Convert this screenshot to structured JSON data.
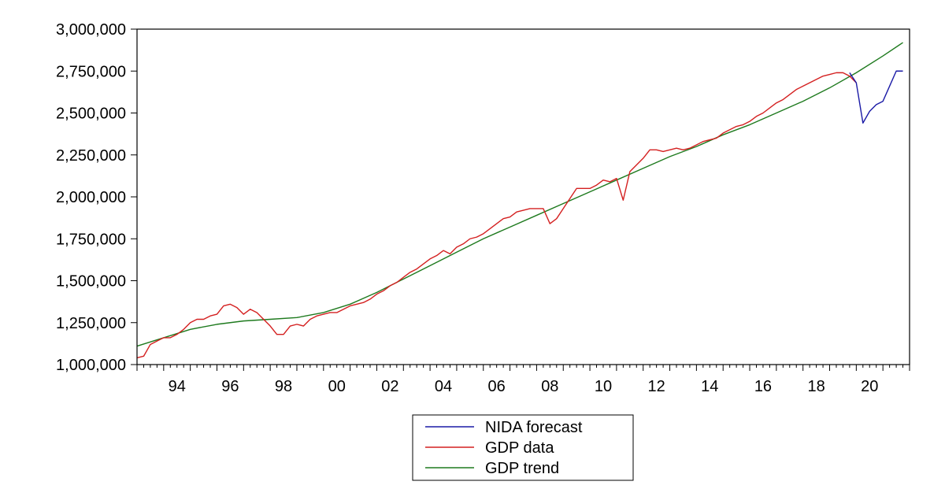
{
  "chart_data": {
    "type": "line",
    "title": "",
    "xlabel": "",
    "ylabel": "",
    "xlim": [
      1993.0,
      2022.0
    ],
    "ylim": [
      1000000,
      3000000
    ],
    "y_ticks": [
      1000000,
      1250000,
      1500000,
      1750000,
      2000000,
      2250000,
      2500000,
      2750000,
      3000000
    ],
    "y_tick_labels": [
      "1,000,000",
      "1,250,000",
      "1,500,000",
      "1,750,000",
      "2,000,000",
      "2,250,000",
      "2,500,000",
      "2,750,000",
      "3,000,000"
    ],
    "x_tick_labels": [
      {
        "x": 1994.5,
        "label": "94"
      },
      {
        "x": 1996.5,
        "label": "96"
      },
      {
        "x": 1998.5,
        "label": "98"
      },
      {
        "x": 2000.5,
        "label": "00"
      },
      {
        "x": 2002.5,
        "label": "02"
      },
      {
        "x": 2004.5,
        "label": "04"
      },
      {
        "x": 2006.5,
        "label": "06"
      },
      {
        "x": 2008.5,
        "label": "08"
      },
      {
        "x": 2010.5,
        "label": "10"
      },
      {
        "x": 2012.5,
        "label": "12"
      },
      {
        "x": 2014.5,
        "label": "14"
      },
      {
        "x": 2016.5,
        "label": "16"
      },
      {
        "x": 2018.5,
        "label": "18"
      },
      {
        "x": 2020.5,
        "label": "20"
      }
    ],
    "grid": false,
    "legend_position": "bottom",
    "series": [
      {
        "name": "NIDA forecast",
        "color": "#1a1aa6",
        "x": [
          2019.75,
          2020.0,
          2020.25,
          2020.5,
          2020.75,
          2021.0,
          2021.25,
          2021.5,
          2021.75
        ],
        "y": [
          2740000,
          2680000,
          2440000,
          2510000,
          2550000,
          2570000,
          2660000,
          2750000,
          2750000
        ]
      },
      {
        "name": "GDP data",
        "color": "#d42020",
        "x": [
          1993.0,
          1993.25,
          1993.5,
          1993.75,
          1994.0,
          1994.25,
          1994.5,
          1994.75,
          1995.0,
          1995.25,
          1995.5,
          1995.75,
          1996.0,
          1996.25,
          1996.5,
          1996.75,
          1997.0,
          1997.25,
          1997.5,
          1997.75,
          1998.0,
          1998.25,
          1998.5,
          1998.75,
          1999.0,
          1999.25,
          1999.5,
          1999.75,
          2000.0,
          2000.25,
          2000.5,
          2000.75,
          2001.0,
          2001.25,
          2001.5,
          2001.75,
          2002.0,
          2002.25,
          2002.5,
          2002.75,
          2003.0,
          2003.25,
          2003.5,
          2003.75,
          2004.0,
          2004.25,
          2004.5,
          2004.75,
          2005.0,
          2005.25,
          2005.5,
          2005.75,
          2006.0,
          2006.25,
          2006.5,
          2006.75,
          2007.0,
          2007.25,
          2007.5,
          2007.75,
          2008.0,
          2008.25,
          2008.5,
          2008.75,
          2009.0,
          2009.25,
          2009.5,
          2009.75,
          2010.0,
          2010.25,
          2010.5,
          2010.75,
          2011.0,
          2011.25,
          2011.5,
          2011.75,
          2012.0,
          2012.25,
          2012.5,
          2012.75,
          2013.0,
          2013.25,
          2013.5,
          2013.75,
          2014.0,
          2014.25,
          2014.5,
          2014.75,
          2015.0,
          2015.25,
          2015.5,
          2015.75,
          2016.0,
          2016.25,
          2016.5,
          2016.75,
          2017.0,
          2017.25,
          2017.5,
          2017.75,
          2018.0,
          2018.25,
          2018.5,
          2018.75,
          2019.0,
          2019.25,
          2019.5,
          2019.75,
          2020.0
        ],
        "y": [
          1040000,
          1050000,
          1120000,
          1140000,
          1160000,
          1160000,
          1180000,
          1210000,
          1250000,
          1270000,
          1270000,
          1290000,
          1300000,
          1350000,
          1360000,
          1340000,
          1300000,
          1330000,
          1310000,
          1270000,
          1230000,
          1180000,
          1180000,
          1230000,
          1240000,
          1230000,
          1270000,
          1290000,
          1300000,
          1310000,
          1310000,
          1330000,
          1350000,
          1360000,
          1370000,
          1390000,
          1420000,
          1440000,
          1470000,
          1490000,
          1520000,
          1550000,
          1570000,
          1600000,
          1630000,
          1650000,
          1680000,
          1660000,
          1700000,
          1720000,
          1750000,
          1760000,
          1780000,
          1810000,
          1840000,
          1870000,
          1880000,
          1910000,
          1920000,
          1930000,
          1930000,
          1930000,
          1840000,
          1870000,
          1930000,
          1990000,
          2050000,
          2050000,
          2050000,
          2070000,
          2100000,
          2090000,
          2110000,
          1980000,
          2150000,
          2190000,
          2230000,
          2280000,
          2280000,
          2270000,
          2280000,
          2290000,
          2280000,
          2290000,
          2310000,
          2330000,
          2340000,
          2350000,
          2380000,
          2400000,
          2420000,
          2430000,
          2450000,
          2480000,
          2500000,
          2530000,
          2560000,
          2580000,
          2610000,
          2640000,
          2660000,
          2680000,
          2700000,
          2720000,
          2730000,
          2740000,
          2740000,
          2720000,
          2680000
        ]
      },
      {
        "name": "GDP trend",
        "color": "#1e7a1e",
        "x": [
          1993.0,
          1994.0,
          1995.0,
          1996.0,
          1997.0,
          1998.0,
          1999.0,
          2000.0,
          2001.0,
          2002.0,
          2003.0,
          2004.0,
          2005.0,
          2006.0,
          2007.0,
          2008.0,
          2009.0,
          2010.0,
          2011.0,
          2012.0,
          2013.0,
          2014.0,
          2015.0,
          2016.0,
          2017.0,
          2018.0,
          2019.0,
          2020.0,
          2021.0,
          2021.75
        ],
        "y": [
          1110000,
          1160000,
          1210000,
          1240000,
          1260000,
          1270000,
          1280000,
          1310000,
          1360000,
          1430000,
          1510000,
          1590000,
          1670000,
          1750000,
          1820000,
          1890000,
          1960000,
          2030000,
          2100000,
          2170000,
          2240000,
          2300000,
          2370000,
          2430000,
          2500000,
          2570000,
          2650000,
          2740000,
          2840000,
          2920000
        ]
      }
    ]
  }
}
